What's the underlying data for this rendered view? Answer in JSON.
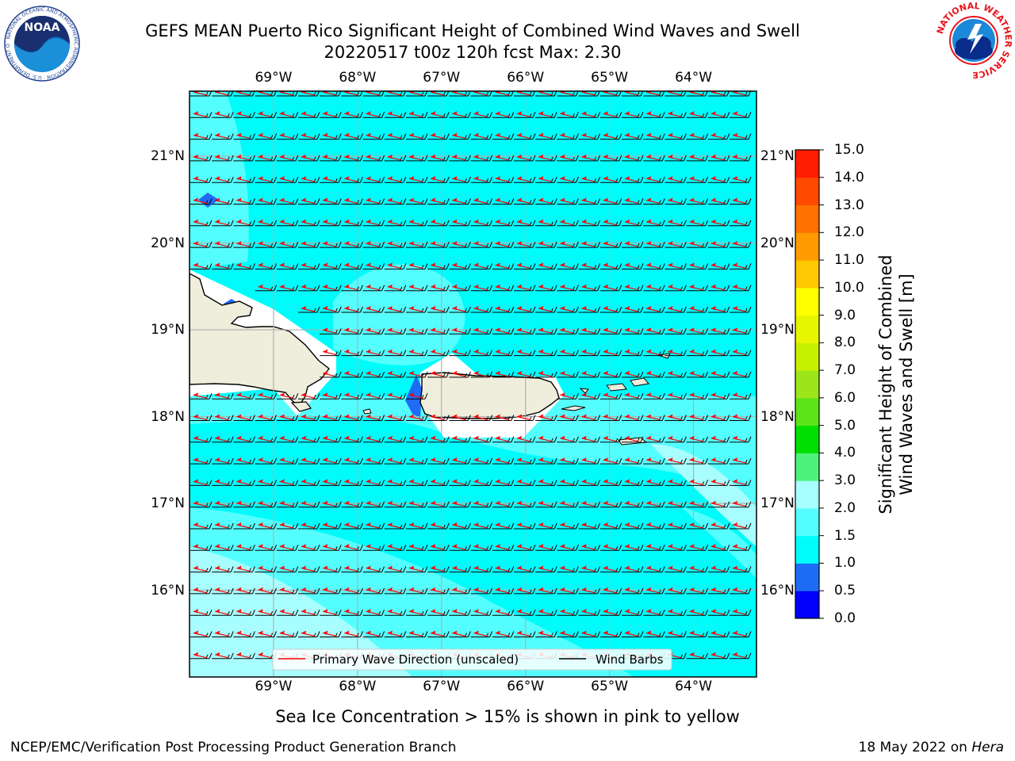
{
  "header": {
    "title": "GEFS MEAN Puerto Rico Significant Height of Combined Wind Waves and Swell",
    "subtitle": "20220517 t00z 120h fcst   Max: 2.30"
  },
  "logos": {
    "left": {
      "icon": "noaa-logo-icon",
      "text": "NOAA",
      "ring_text": "NATIONAL OCEANIC AND ATMOSPHERIC ADMINISTRATION · U.S. DEPARTMENT OF COMMERCE"
    },
    "right": {
      "icon": "nws-logo-icon",
      "ring_text": "NATIONAL WEATHER SERVICE"
    }
  },
  "map": {
    "lon_ticks": [
      {
        "value": -69,
        "label": "69°W"
      },
      {
        "value": -68,
        "label": "68°W"
      },
      {
        "value": -67,
        "label": "67°W"
      },
      {
        "value": -66,
        "label": "66°W"
      },
      {
        "value": -65,
        "label": "65°W"
      },
      {
        "value": -64,
        "label": "64°W"
      }
    ],
    "lat_ticks": [
      {
        "value": 21,
        "label": "21°N"
      },
      {
        "value": 20,
        "label": "20°N"
      },
      {
        "value": 19,
        "label": "19°N"
      },
      {
        "value": 18,
        "label": "18°N"
      },
      {
        "value": 17,
        "label": "17°N"
      },
      {
        "value": 16,
        "label": "16°N"
      }
    ],
    "extent": {
      "lon_min": -70.0,
      "lon_max": -63.25,
      "lat_min": 15.0,
      "lat_max": 21.75
    },
    "max_value": 2.3,
    "colors": {
      "ocean": "#00fbfb",
      "ocean_light": "#55fefe",
      "ocean_pale": "#a8fefe",
      "low": "#1e6cf5",
      "land": "#efeddc",
      "coast": "#000000",
      "wave_arrow": "#ff0000",
      "barb": "#000000",
      "grid": "#b0b0b0"
    }
  },
  "legend": {
    "items": [
      {
        "label": "Primary Wave Direction (unscaled)",
        "color": "#ff0000"
      },
      {
        "label": "Wind Barbs",
        "color": "#000000"
      }
    ]
  },
  "colorbar": {
    "label_line1": "Significant Height of Combined",
    "label_line2": "Wind Waves and Swell [m]",
    "tick_labels": [
      "0.0",
      "0.5",
      "1.0",
      "1.5",
      "2.0",
      "3.0",
      "4.0",
      "5.0",
      "6.0",
      "7.0",
      "8.0",
      "9.0",
      "10.0",
      "11.0",
      "12.0",
      "13.0",
      "14.0",
      "15.0"
    ],
    "colors": [
      "#0000fb",
      "#1e6cf5",
      "#00fbfb",
      "#55fefe",
      "#a8fefe",
      "#4df27a",
      "#00e000",
      "#5de31a",
      "#9ce51a",
      "#c7f000",
      "#e8f500",
      "#ffff00",
      "#ffc800",
      "#ff9b00",
      "#ff7000",
      "#ff4a00",
      "#ff1e00"
    ]
  },
  "note": "Sea Ice Concentration > 15% is shown in pink to yellow",
  "footer": {
    "left": "NCEP/EMC/Verification Post Processing Product Generation Branch",
    "right_prefix": "18 May 2022 on ",
    "right_host": "Hera"
  }
}
